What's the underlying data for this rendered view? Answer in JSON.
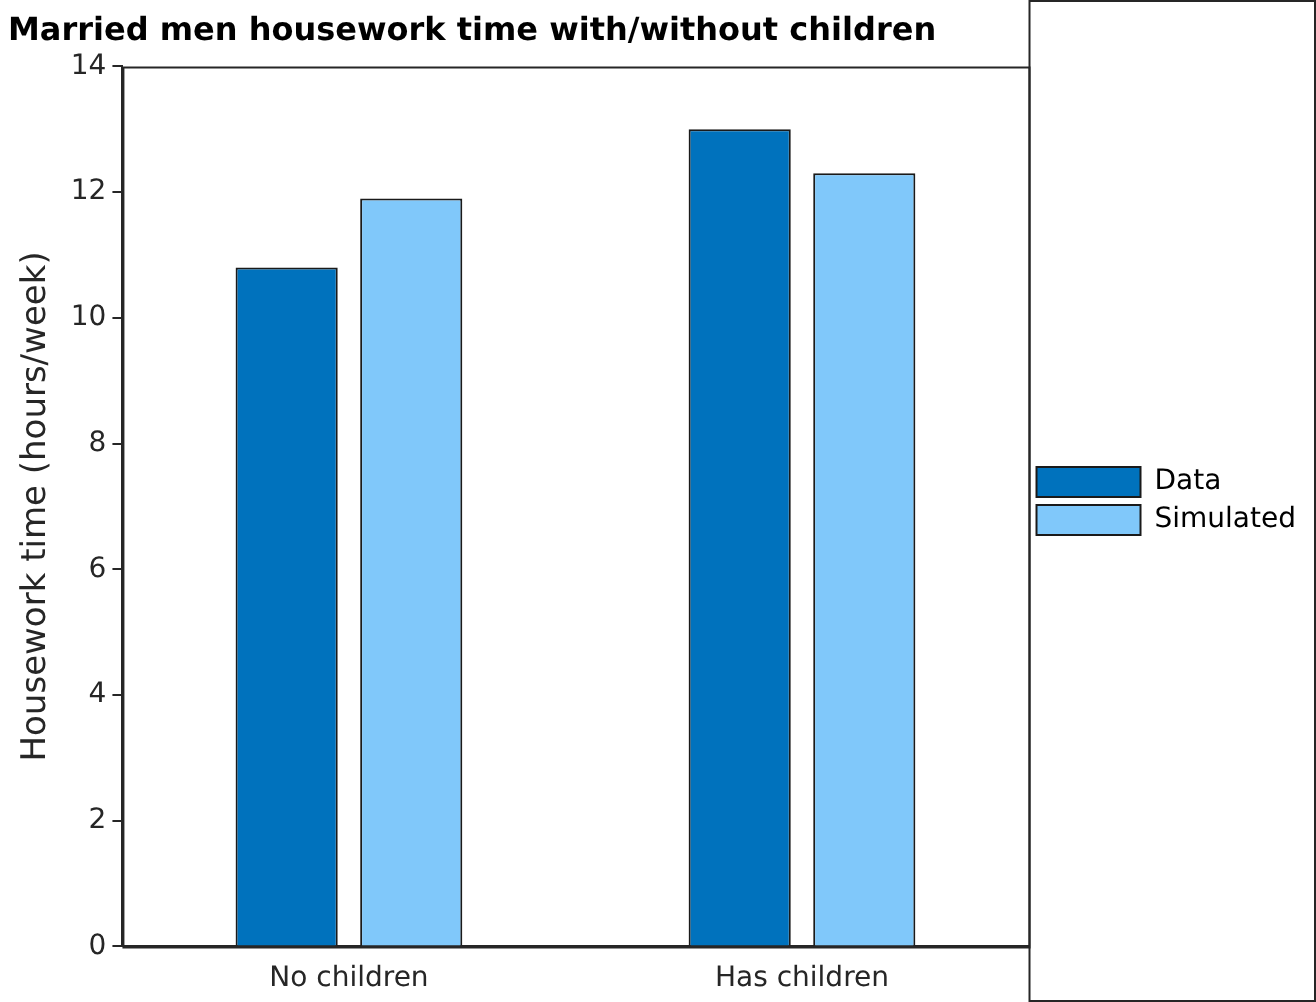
{
  "chart_data": {
    "type": "bar",
    "title": "Married men housework time with/without children",
    "ylabel": "Housework time (hours/week)",
    "categories": [
      "No children",
      "Has children"
    ],
    "series": [
      {
        "name": "Data",
        "color": "#0072bd",
        "values": [
          10.8,
          13.0
        ]
      },
      {
        "name": "Simulated",
        "color": "#80c8fa",
        "values": [
          11.9,
          12.3
        ]
      }
    ],
    "ylim": [
      0,
      14
    ],
    "yticks": [
      0,
      2,
      4,
      6,
      8,
      10,
      12,
      14
    ],
    "grid": false,
    "legend": "right"
  }
}
